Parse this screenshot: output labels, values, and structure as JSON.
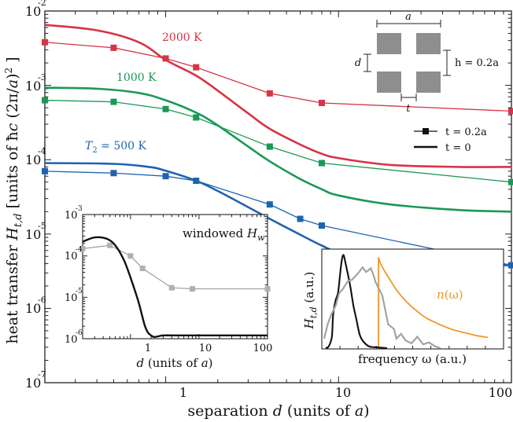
{
  "chart_data": [
    {
      "type": "line",
      "log_x": true,
      "log_y": true,
      "xlim": [
        0.2,
        100
      ],
      "ylim": [
        1e-07,
        0.01
      ],
      "xlabel": "separation d (units of a)",
      "ylabel": "heat transfer H_{t,d} [units of ħc (2π/a)^2 ]",
      "xtick_labels": [
        "1",
        "10",
        "100"
      ],
      "ytick_labels": [
        "10^-7",
        "10^-6",
        "10^-5",
        "10^-4",
        "10^-3",
        "10^-2"
      ],
      "temperature_labels": [
        "2000 K",
        "1000 K",
        "T_2 = 500 K"
      ],
      "legend": {
        "position": "right",
        "entries": [
          "t = 0.2a",
          "t = 0"
        ]
      },
      "colors": {
        "2000 K": "#d63447",
        "1000 K": "#1a9955",
        "500 K": "#1f63b0"
      },
      "series": [
        {
          "name": "2000 K",
          "marker": "square",
          "x": [
            0.2,
            0.5,
            1,
            1.5,
            4,
            8,
            100
          ],
          "y": [
            0.0038,
            0.0032,
            0.0023,
            0.00175,
            0.00078,
            0.00058,
            0.00045
          ]
        },
        {
          "name": "2000 K",
          "marker": "none",
          "x": [
            0.2,
            0.4,
            0.7,
            1,
            1.5,
            2,
            3,
            4,
            6,
            8,
            10,
            20,
            50,
            100
          ],
          "y": [
            0.0065,
            0.0055,
            0.0038,
            0.0022,
            0.00135,
            0.00085,
            0.00042,
            0.00026,
            0.00016,
            0.00012,
            0.000105,
            8.5e-05,
            8e-05,
            8e-05
          ]
        },
        {
          "name": "1000 K",
          "marker": "square",
          "x": [
            0.2,
            0.5,
            1,
            1.5,
            4,
            8,
            100
          ],
          "y": [
            0.00063,
            0.0006,
            0.00048,
            0.00037,
            0.00015,
            9e-05,
            5e-05
          ]
        },
        {
          "name": "1000 K",
          "marker": "none",
          "x": [
            0.2,
            0.4,
            0.7,
            1,
            1.5,
            2,
            3,
            4,
            6,
            8,
            10,
            20,
            50,
            100
          ],
          "y": [
            0.00093,
            0.0009,
            0.00079,
            0.00063,
            0.00043,
            0.00029,
            0.00015,
            9.5e-05,
            5.5e-05,
            4e-05,
            3.3e-05,
            2.5e-05,
            2.1e-05,
            2e-05
          ]
        },
        {
          "name": "500 K",
          "marker": "square",
          "x": [
            0.2,
            0.5,
            1,
            1.5,
            4,
            6,
            8,
            100
          ],
          "y": [
            7e-05,
            6.6e-05,
            6e-05,
            5.2e-05,
            2.5e-05,
            1.6e-05,
            1.3e-05,
            3.8e-06
          ]
        },
        {
          "name": "500 K",
          "marker": "none",
          "x": [
            0.2,
            0.5,
            0.8,
            1,
            1.5,
            2,
            3,
            4,
            6,
            8,
            10,
            20,
            50,
            100
          ],
          "y": [
            9e-05,
            8.8e-05,
            8e-05,
            7.1e-05,
            5.2e-05,
            3.8e-05,
            2.3e-05,
            1.6e-05,
            9.8e-06,
            7e-06,
            5.8e-06,
            4.5e-06,
            3.9e-06,
            3.8e-06
          ]
        }
      ],
      "geometry_labels": {
        "top": "a",
        "left": "d",
        "right": "h = 0.2a",
        "bottom": "t"
      }
    },
    {
      "type": "line",
      "log_x": true,
      "log_y": true,
      "xlim": [
        0.2,
        100
      ],
      "ylim": [
        1e-06,
        0.001
      ],
      "xlabel": "d (units of a)",
      "title": "windowed H_w",
      "xtick_labels": [
        "1",
        "10",
        "100"
      ],
      "ytick_labels": [
        "10^-6",
        "10^-5",
        "10^-4",
        "10^-3"
      ],
      "series": [
        {
          "name": "t = 0.2a",
          "marker": "square",
          "x": [
            0.2,
            0.5,
            1,
            1.5,
            4,
            8,
            100
          ],
          "y": [
            0.00015,
            0.00018,
            0.0001,
            5e-05,
            1.7e-05,
            1.6e-05,
            1.6e-05
          ]
        },
        {
          "name": "t = 0",
          "marker": "none",
          "x": [
            0.2,
            0.3,
            0.45,
            0.6,
            0.8,
            1.0,
            1.3,
            1.6,
            1.8,
            2.0,
            2.2,
            2.6,
            3,
            5,
            10,
            30,
            100
          ],
          "y": [
            0.00022,
            0.00028,
            0.00026,
            0.00018,
            8e-05,
            3e-05,
            8e-06,
            2.2e-06,
            1.4e-06,
            1.2e-06,
            1.1e-06,
            1.15e-06,
            1.2e-06,
            1.2e-06,
            1.2e-06,
            1.2e-06,
            1.2e-06
          ]
        }
      ]
    },
    {
      "type": "line",
      "xlabel": "frequency ω (a.u.)",
      "ylabel": "H_{t,d} (a.u.)",
      "annotation": "n(ω)",
      "colors": {
        "n(ω)": "#f0982b"
      },
      "series": [
        {
          "name": "n(ω)",
          "x": [
            0.0,
            0.02,
            0.05,
            0.1,
            0.15,
            0.2,
            0.25,
            0.3,
            0.35,
            0.4,
            0.45,
            0.5,
            0.55,
            0.6,
            0.65,
            0.7,
            0.75,
            0.8,
            0.85,
            0.9,
            0.95,
            1.0
          ],
          "y": [
            1.02,
            0.95,
            0.88,
            0.78,
            0.68,
            0.6,
            0.53,
            0.47,
            0.42,
            0.37,
            0.33,
            0.3,
            0.27,
            0.245,
            0.22,
            0.2,
            0.185,
            0.17,
            0.155,
            0.14,
            0.13,
            0.12
          ]
        },
        {
          "name": "t = 0",
          "x": [
            0.0,
            0.05,
            0.1,
            0.12,
            0.16,
            0.2,
            0.23,
            0.26,
            0.29,
            0.32,
            0.36,
            0.4,
            0.45,
            0.5,
            0.55,
            0.6,
            0.7,
            0.8,
            1.0
          ],
          "y": [
            0.0,
            0.02,
            0.12,
            0.35,
            0.5,
            0.58,
            0.75,
            0.92,
            0.98,
            0.9,
            0.78,
            0.65,
            0.45,
            0.3,
            0.15,
            0.08,
            0.02,
            0.01,
            0.0
          ]
        },
        {
          "name": "t = 0.2a",
          "x": [
            0.0,
            0.03,
            0.06,
            0.1,
            0.13,
            0.16,
            0.2,
            0.24,
            0.27,
            0.3,
            0.33,
            0.36,
            0.4,
            0.42,
            0.44,
            0.5,
            0.55,
            0.6,
            0.62,
            0.66,
            0.7,
            0.75,
            0.8,
            0.85,
            0.9,
            0.95,
            1.0
          ],
          "y": [
            0.1,
            0.25,
            0.35,
            0.45,
            0.58,
            0.62,
            0.7,
            0.72,
            0.76,
            0.8,
            0.85,
            0.8,
            0.84,
            0.78,
            0.7,
            0.55,
            0.25,
            0.2,
            0.1,
            0.15,
            0.08,
            0.05,
            0.12,
            0.04,
            0.06,
            0.02,
            0.0
          ]
        }
      ]
    }
  ]
}
